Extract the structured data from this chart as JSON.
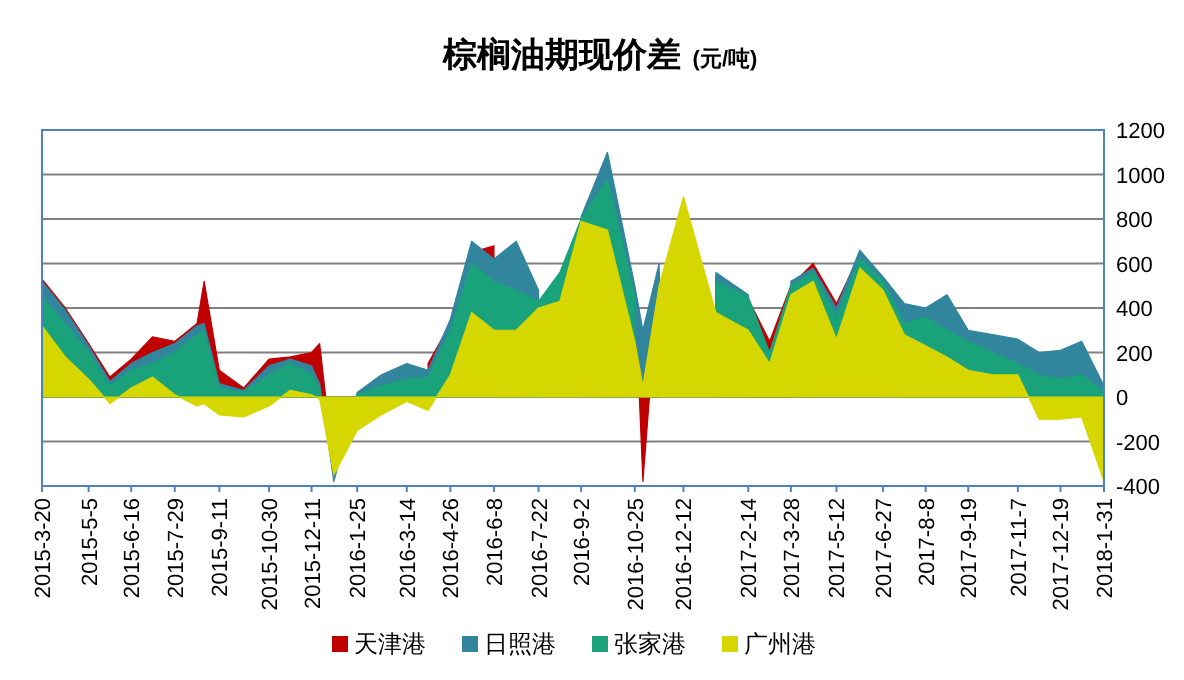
{
  "chart_data": {
    "type": "area",
    "title": "棕榈油期现价差",
    "subtitle": "(元/吨)",
    "x": [
      "2015-03-20",
      "2015-04-12",
      "2015-05-05",
      "2015-05-26",
      "2015-06-16",
      "2015-07-07",
      "2015-07-29",
      "2015-08-20",
      "2015-08-27",
      "2015-09-11",
      "2015-10-05",
      "2015-10-30",
      "2015-11-20",
      "2015-12-11",
      "2015-12-19",
      "2016-01-02",
      "2016-01-25",
      "2016-02-18",
      "2016-03-14",
      "2016-04-04",
      "2016-04-26",
      "2016-05-17",
      "2016-06-08",
      "2016-06-30",
      "2016-07-22",
      "2016-08-12",
      "2016-09-02",
      "2016-09-28",
      "2016-10-25",
      "2016-11-02",
      "2016-11-18",
      "2016-12-12",
      "2017-01-13",
      "2017-02-14",
      "2017-03-07",
      "2017-03-28",
      "2017-04-19",
      "2017-05-12",
      "2017-06-04",
      "2017-06-27",
      "2017-07-18",
      "2017-08-08",
      "2017-08-29",
      "2017-09-19",
      "2017-10-13",
      "2017-11-07",
      "2017-11-28",
      "2017-12-19",
      "2018-01-09",
      "2018-01-31"
    ],
    "series": [
      {
        "name": "天津港",
        "color": "#c00000",
        "values": [
          530,
          400,
          240,
          90,
          170,
          270,
          250,
          330,
          520,
          120,
          40,
          170,
          180,
          200,
          240,
          -320,
          0,
          null,
          null,
          150,
          330,
          650,
          680,
          null,
          null,
          null,
          null,
          null,
          480,
          -380,
          560,
          null,
          540,
          440,
          250,
          500,
          600,
          420,
          640,
          520,
          null,
          null,
          null,
          null,
          null,
          null,
          null,
          null,
          220,
          30
        ]
      },
      {
        "name": "日照港",
        "color": "#31859c",
        "values": [
          520,
          390,
          230,
          70,
          150,
          200,
          240,
          320,
          330,
          60,
          30,
          140,
          170,
          140,
          60,
          -380,
          20,
          100,
          150,
          120,
          350,
          700,
          620,
          700,
          480,
          null,
          810,
          1100,
          500,
          300,
          600,
          null,
          560,
          460,
          null,
          520,
          580,
          400,
          660,
          540,
          420,
          400,
          460,
          300,
          280,
          260,
          200,
          210,
          250,
          50
        ]
      },
      {
        "name": "张家港",
        "color": "#1aa37a",
        "values": [
          450,
          330,
          200,
          50,
          120,
          150,
          200,
          280,
          300,
          40,
          20,
          100,
          150,
          100,
          40,
          -340,
          10,
          50,
          80,
          90,
          300,
          600,
          520,
          480,
          430,
          560,
          800,
          980,
          450,
          null,
          null,
          null,
          520,
          450,
          200,
          500,
          560,
          360,
          620,
          520,
          330,
          360,
          300,
          250,
          200,
          150,
          100,
          80,
          100,
          20
        ]
      },
      {
        "name": "广州港",
        "color": "#d6d600",
        "values": [
          320,
          180,
          80,
          -30,
          40,
          90,
          10,
          -40,
          -30,
          -80,
          -90,
          -40,
          30,
          10,
          -10,
          -350,
          -150,
          -80,
          -20,
          -60,
          100,
          380,
          300,
          300,
          400,
          430,
          790,
          750,
          250,
          50,
          500,
          900,
          380,
          300,
          150,
          460,
          520,
          260,
          580,
          480,
          280,
          230,
          180,
          120,
          100,
          100,
          -100,
          -100,
          -90,
          -380
        ]
      }
    ],
    "xlim": [
      "2015-03-20",
      "2018-01-31"
    ],
    "xticks": [
      {
        "value": "2015-03-20",
        "label": "2015-3-20"
      },
      {
        "value": "2015-05-05",
        "label": "2015-5-5"
      },
      {
        "value": "2015-06-16",
        "label": "2015-6-16"
      },
      {
        "value": "2015-07-29",
        "label": "2015-7-29"
      },
      {
        "value": "2015-09-11",
        "label": "2015-9-11"
      },
      {
        "value": "2015-10-30",
        "label": "2015-10-30"
      },
      {
        "value": "2015-12-11",
        "label": "2015-12-11"
      },
      {
        "value": "2016-01-25",
        "label": "2016-1-25"
      },
      {
        "value": "2016-03-14",
        "label": "2016-3-14"
      },
      {
        "value": "2016-04-26",
        "label": "2016-4-26"
      },
      {
        "value": "2016-06-08",
        "label": "2016-6-8"
      },
      {
        "value": "2016-07-22",
        "label": "2016-7-22"
      },
      {
        "value": "2016-09-02",
        "label": "2016-9-2"
      },
      {
        "value": "2016-10-25",
        "label": "2016-10-25"
      },
      {
        "value": "2016-12-12",
        "label": "2016-12-12"
      },
      {
        "value": "2017-02-14",
        "label": "2017-2-14"
      },
      {
        "value": "2017-03-28",
        "label": "2017-3-28"
      },
      {
        "value": "2017-05-12",
        "label": "2017-5-12"
      },
      {
        "value": "2017-06-27",
        "label": "2017-6-27"
      },
      {
        "value": "2017-08-08",
        "label": "2017-8-8"
      },
      {
        "value": "2017-09-19",
        "label": "2017-9-19"
      },
      {
        "value": "2017-11-07",
        "label": "2017-11-7"
      },
      {
        "value": "2017-12-19",
        "label": "2017-12-19"
      },
      {
        "value": "2018-01-31",
        "label": "2018-1-31"
      }
    ],
    "ylim": [
      -400,
      1200
    ],
    "yticks": [
      -400,
      -200,
      0,
      200,
      400,
      600,
      800,
      1000,
      1200
    ],
    "grid": "y",
    "legend": "bottom"
  }
}
